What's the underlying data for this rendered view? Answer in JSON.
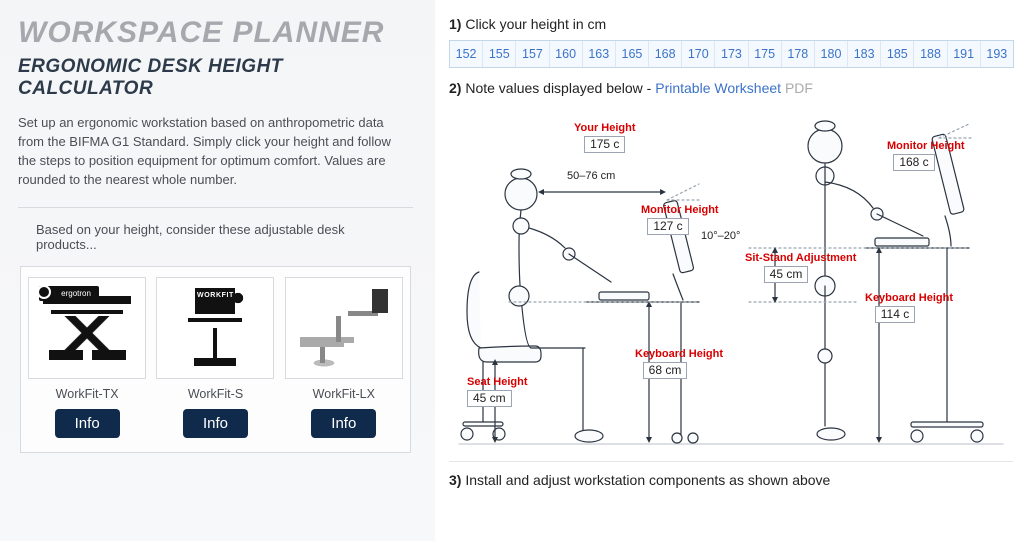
{
  "left": {
    "main_title": "WORKSPACE PLANNER",
    "sub_title": "ERGONOMIC DESK HEIGHT CALCULATOR",
    "intro": "Set up an ergonomic workstation based on anthropometric data from the BIFMA G1 Standard. Simply click your height and follow the steps to position equipment for optimum comfort. Values are rounded to the nearest whole number.",
    "reco_line": "Based on your height, consider these adjustable desk products...",
    "products": [
      {
        "name": "WorkFit-TX",
        "btn": "Info"
      },
      {
        "name": "WorkFit-S",
        "btn": "Info"
      },
      {
        "name": "WorkFit-LX",
        "btn": "Info"
      }
    ]
  },
  "right": {
    "step1_prefix": "1)",
    "step1_text": "Click your height in cm",
    "height_options": [
      "152",
      "155",
      "157",
      "160",
      "163",
      "165",
      "168",
      "170",
      "173",
      "175",
      "178",
      "180",
      "183",
      "185",
      "188",
      "191",
      "193"
    ],
    "step2_prefix": "2)",
    "step2_text": "Note values displayed below - ",
    "step2_link": "Printable Worksheet",
    "step2_pdf": "PDF",
    "step3_prefix": "3)",
    "step3_text": "Install and adjust workstation components as shown above",
    "diagram": {
      "eye_distance": "50–76 cm",
      "tilt": "10°–20°",
      "sitting": {
        "your_height": {
          "label": "Your Height",
          "value": "175 c"
        },
        "monitor_height": {
          "label": "Monitor Height",
          "value": "127 c"
        },
        "keyboard_height": {
          "label": "Keyboard Height",
          "value": "68 cm"
        },
        "seat_height": {
          "label": "Seat Height",
          "value": "45 cm"
        }
      },
      "standing": {
        "monitor_height": {
          "label": "Monitor Height",
          "value": "168 c"
        },
        "keyboard_height": {
          "label": "Keyboard Height",
          "value": "114 c"
        },
        "sit_stand": {
          "label": "Sit-Stand Adjustment",
          "value": "45 cm"
        }
      }
    },
    "colors": {
      "accent_red": "#d80000",
      "link_blue": "#3b73c9",
      "figure_grey": "#9aa5b1",
      "ink": "#2b3440"
    }
  }
}
